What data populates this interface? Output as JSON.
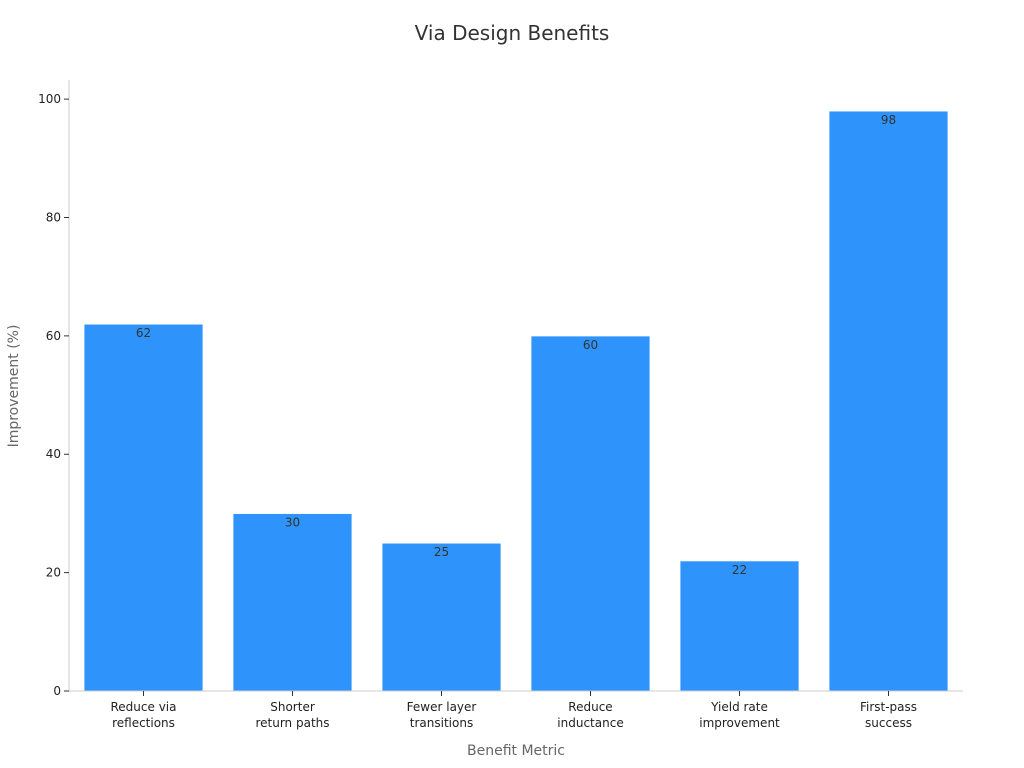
{
  "chart_data": {
    "type": "bar",
    "title": "Via Design Benefits",
    "xlabel": "Benefit Metric",
    "ylabel": "Improvement (%)",
    "categories": [
      [
        "Reduce via",
        "reflections"
      ],
      [
        "Shorter",
        "return paths"
      ],
      [
        "Fewer layer",
        "transitions"
      ],
      [
        "Reduce",
        "inductance"
      ],
      [
        "Yield rate",
        "improvement"
      ],
      [
        "First-pass",
        "success"
      ]
    ],
    "values": [
      62,
      30,
      25,
      60,
      22,
      98
    ],
    "ylim": [
      0,
      100
    ],
    "yticks": [
      0,
      20,
      40,
      60,
      80,
      100
    ],
    "grid": false,
    "legend": "none",
    "colors": {
      "bar": "#2e93fa",
      "axis": "#cccccc",
      "tick": "#333333"
    }
  }
}
